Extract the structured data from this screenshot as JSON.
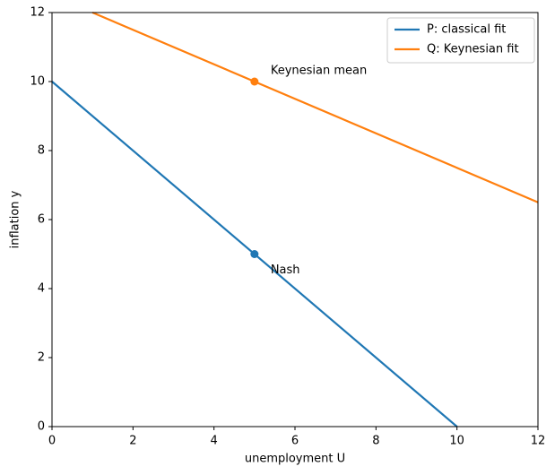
{
  "chart_data": {
    "type": "line",
    "xlabel": "unemployment U",
    "ylabel": "inflation y",
    "xlim": [
      0,
      12
    ],
    "ylim": [
      0,
      12
    ],
    "xticks": [
      0,
      2,
      4,
      6,
      8,
      10,
      12
    ],
    "yticks": [
      0,
      2,
      4,
      6,
      8,
      10,
      12
    ],
    "grid": false,
    "legend": "upper right",
    "series": [
      {
        "name": "P: classical fit",
        "color": "#1f77b4",
        "x": [
          0,
          10
        ],
        "values": [
          10,
          0
        ]
      },
      {
        "name": "Q: Keynesian fit",
        "color": "#ff7f0e",
        "x": [
          1,
          12
        ],
        "values": [
          12,
          6.5
        ]
      }
    ],
    "points": [
      {
        "label": "Nash",
        "x": 5,
        "y": 5,
        "color": "#1f77b4"
      },
      {
        "label": "Keynesian mean",
        "x": 5,
        "y": 10,
        "color": "#ff7f0e"
      }
    ]
  }
}
